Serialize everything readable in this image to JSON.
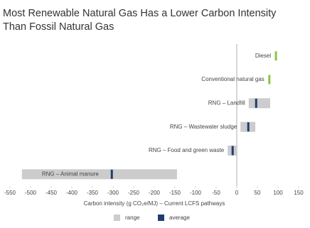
{
  "chart_data": {
    "type": "range-bar",
    "title": [
      "Most Renewable Natural Gas Has a Lower Carbon Intensity",
      "Than Fossil Natural Gas"
    ],
    "categories": [
      "Diesel",
      "Conventional natural gas",
      "RNG – Landfill",
      "RNG – Wastewater sludge",
      "RNG – Food and green waste",
      "RNG – Animal manure"
    ],
    "series": [
      {
        "name": "range",
        "color": "#cccccc",
        "values": [
          [
            null,
            null
          ],
          [
            null,
            null
          ],
          [
            29,
            81
          ],
          [
            9,
            45
          ],
          [
            -22,
            0
          ],
          [
            -521,
            -145
          ]
        ]
      },
      {
        "name": "average",
        "color": "#1f3e6e",
        "values": [
          95,
          79,
          47,
          28,
          -10,
          -303
        ],
        "point_colors": [
          "#8dc63f",
          "#8dc63f",
          "#1f3e6e",
          "#1f3e6e",
          "#1f3e6e",
          "#1f3e6e"
        ]
      }
    ],
    "xlabel": "Carbon intensity (g CO₂e/MJ) – Current LCFS pathways",
    "xlim": [
      -550,
      150
    ],
    "xticks": [
      -550,
      -500,
      -450,
      -400,
      -350,
      -300,
      -250,
      -200,
      -150,
      -100,
      -50,
      0,
      50,
      100,
      150
    ],
    "zero_line": true
  }
}
